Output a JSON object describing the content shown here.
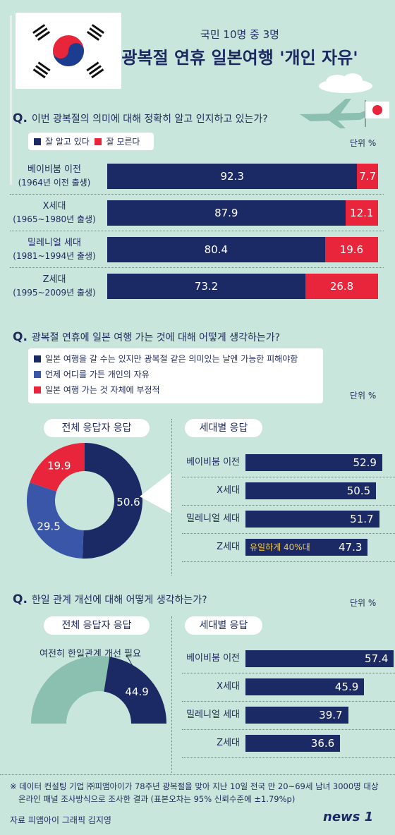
{
  "header": {
    "subtitle": "국민 10명 중 3명",
    "title": "광복절 연휴 일본여행 '개인 자유'"
  },
  "colors": {
    "navy": "#1b2a64",
    "red": "#e8253a",
    "mid_blue": "#3a56a8",
    "teal": "#8bbfb0",
    "background": "#c9e6dc"
  },
  "q1": {
    "question": "이번 광복절의 의미에 대해 정확히 알고 인지하고 있는가?",
    "q_mark": "Q.",
    "unit": "단위 %",
    "legend": [
      "잘 알고 있다",
      "잘 모른다"
    ]
  },
  "q2": {
    "question": "광복절 연휴에 일본 여행 가는 것에 대해 어떻게 생각하는가?",
    "q_mark": "Q.",
    "unit": "단위 %",
    "legend": [
      "일본 여행을 갈 수는 있지만 광복절 같은 의미있는 날엔 가능한 피해야함",
      "언제 어디를 가든 개인의 자유",
      "일본 여행 가는 것 자체에 부정적"
    ],
    "left_title": "전체 응답자 응답",
    "right_title": "세대별 응답",
    "highlight": "유일하게 40%대"
  },
  "q3": {
    "question": "한일 관계 개선에 대해 어떻게 생각하는가?",
    "q_mark": "Q.",
    "unit": "단위 %",
    "left_title": "전체 응답자 응답",
    "right_title": "세대별 응답",
    "donut_label": "여전히 한일관계 개선 필요"
  },
  "footer": {
    "note_line1": "※ 데이터 컨설팅 기업 ㈜피앰아이가 78주년 광복절을 맞아 지난 10일 전국 만 20~69세 남녀 3000명 대상",
    "note_line2": "온라인 패널 조사방식으로 조사한 결과 (표본오차는 95% 신뢰수준에 ±1.79%p)",
    "source": "자료 피앰아이   그래픽 김지영",
    "brand": "news 1"
  },
  "chart_data": [
    {
      "type": "bar",
      "stacked": true,
      "orientation": "horizontal",
      "categories": [
        [
          "베이비붐 이전",
          "(1964년 이전 출생)"
        ],
        [
          "X세대",
          "(1965~1980년 출생)"
        ],
        [
          "밀레니얼 세대",
          "(1981~1994년 출생)"
        ],
        [
          "Z세대",
          "(1995~2009년 출생)"
        ]
      ],
      "series": [
        {
          "name": "잘 알고 있다",
          "values": [
            92.3,
            87.9,
            80.4,
            73.2
          ]
        },
        {
          "name": "잘 모른다",
          "values": [
            7.7,
            12.1,
            19.6,
            26.8
          ]
        }
      ],
      "xlim": [
        0,
        100
      ]
    },
    {
      "type": "pie",
      "donut": true,
      "labels": [
        "일본 여행을 갈 수는 있지만 광복절 같은 의미있는 날엔 가능한 피해야함",
        "언제 어디를 가든 개인의 자유",
        "일본 여행 가는 것 자체에 부정적"
      ],
      "values": [
        50.6,
        29.5,
        19.9
      ]
    },
    {
      "type": "bar",
      "orientation": "horizontal",
      "categories": [
        "베이비붐 이전",
        "X세대",
        "밀레니얼 세대",
        "Z세대"
      ],
      "values": [
        52.9,
        50.5,
        51.7,
        47.3
      ],
      "xlim": [
        0,
        60
      ]
    },
    {
      "type": "pie",
      "donut": true,
      "half": true,
      "labels": [
        "여전히 한일관계 개선 필요"
      ],
      "values": [
        44.9
      ]
    },
    {
      "type": "bar",
      "orientation": "horizontal",
      "categories": [
        "베이비붐 이전",
        "X세대",
        "밀레니얼 세대",
        "Z세대"
      ],
      "values": [
        57.4,
        45.9,
        39.7,
        36.6
      ],
      "xlim": [
        0,
        60
      ]
    }
  ]
}
